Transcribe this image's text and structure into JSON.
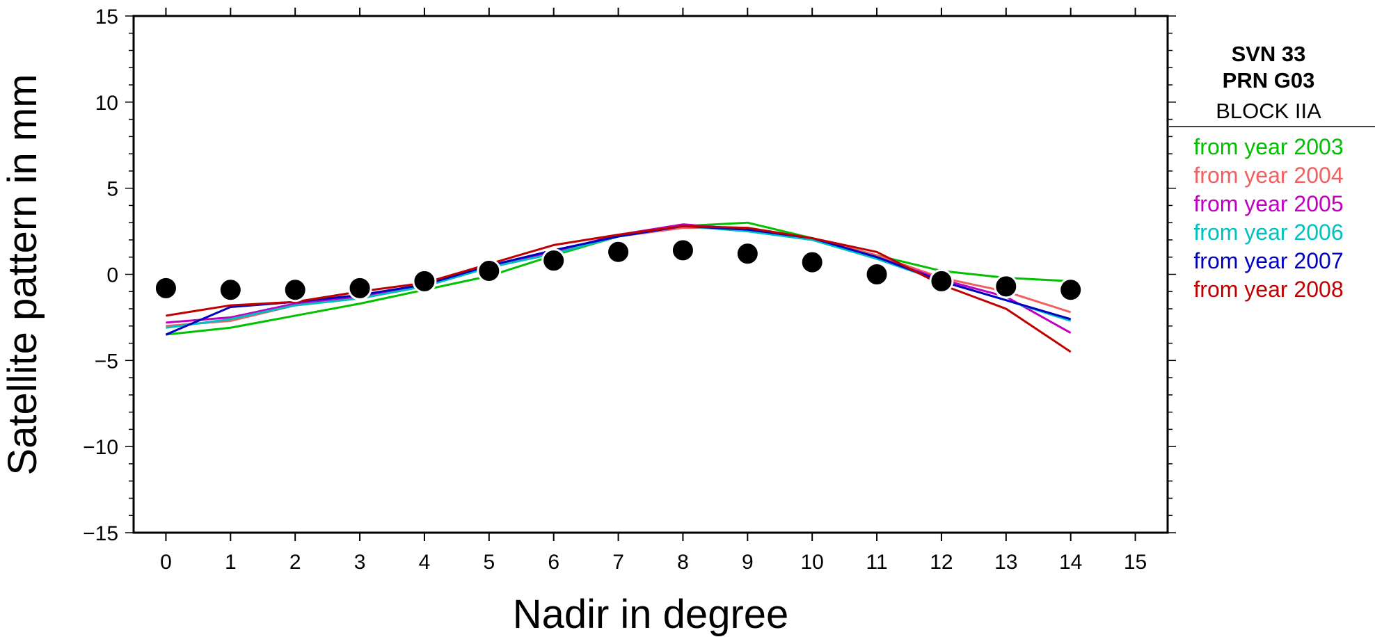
{
  "chart_data": {
    "type": "line",
    "xlabel": "Nadir in degree",
    "ylabel": "Satellite pattern in mm",
    "xlim": [
      -0.5,
      15.5
    ],
    "ylim": [
      -15,
      15
    ],
    "xticks": [
      0,
      1,
      2,
      3,
      4,
      5,
      6,
      7,
      8,
      9,
      10,
      11,
      12,
      13,
      14,
      15
    ],
    "yticks": [
      -15,
      -10,
      -5,
      0,
      5,
      10,
      15
    ],
    "ytick_labels": [
      "−15",
      "−10",
      "−5",
      "0",
      "5",
      "10",
      "15"
    ],
    "grid": false,
    "legend_placement": "right",
    "legend_title": {
      "svn": "SVN 33",
      "prn": "PRN G03",
      "block": "BLOCK IIA"
    },
    "series": [
      {
        "name": "from year 2003",
        "color": "#00c000",
        "x": [
          0,
          1,
          2,
          3,
          4,
          5,
          6,
          7,
          8,
          9,
          10,
          11,
          12,
          13,
          14
        ],
        "y": [
          -3.5,
          -3.1,
          -2.4,
          -1.7,
          -0.9,
          -0.1,
          1.1,
          2.2,
          2.8,
          3.0,
          2.1,
          1.1,
          0.2,
          -0.2,
          -0.4
        ]
      },
      {
        "name": "from year 2004",
        "color": "#f06060",
        "x": [
          0,
          1,
          2,
          3,
          4,
          5,
          6,
          7,
          8,
          9,
          10,
          11,
          12,
          13,
          14
        ],
        "y": [
          -3.0,
          -2.7,
          -1.8,
          -1.4,
          -0.7,
          0.4,
          1.2,
          2.2,
          2.7,
          2.7,
          2.1,
          1.1,
          -0.2,
          -1.0,
          -2.2
        ]
      },
      {
        "name": "from year 2005",
        "color": "#c000c0",
        "x": [
          0,
          1,
          2,
          3,
          4,
          5,
          6,
          7,
          8,
          9,
          10,
          11,
          12,
          13,
          14
        ],
        "y": [
          -2.8,
          -2.5,
          -1.7,
          -1.3,
          -0.6,
          0.5,
          1.3,
          2.3,
          2.9,
          2.6,
          2.0,
          1.0,
          -0.3,
          -1.3,
          -3.4
        ]
      },
      {
        "name": "from year 2006",
        "color": "#00c0c0",
        "x": [
          0,
          1,
          2,
          3,
          4,
          5,
          6,
          7,
          8,
          9,
          10,
          11,
          12,
          13,
          14
        ],
        "y": [
          -3.1,
          -2.6,
          -1.8,
          -1.4,
          -0.7,
          0.4,
          1.2,
          2.2,
          2.8,
          2.5,
          2.0,
          0.9,
          -0.4,
          -1.5,
          -2.7
        ]
      },
      {
        "name": "from year 2007",
        "color": "#0000c0",
        "x": [
          0,
          1,
          2,
          3,
          4,
          5,
          6,
          7,
          8,
          9,
          10,
          11,
          12,
          13,
          14
        ],
        "y": [
          -3.5,
          -1.9,
          -1.6,
          -1.2,
          -0.6,
          0.5,
          1.4,
          2.2,
          2.8,
          2.6,
          2.1,
          1.0,
          -0.4,
          -1.5,
          -2.6
        ]
      },
      {
        "name": "from year 2008",
        "color": "#c00000",
        "x": [
          0,
          1,
          2,
          3,
          4,
          5,
          6,
          7,
          8,
          9,
          10,
          11,
          12,
          13,
          14
        ],
        "y": [
          -2.4,
          -1.8,
          -1.6,
          -1.0,
          -0.5,
          0.6,
          1.7,
          2.3,
          2.8,
          2.7,
          2.1,
          1.3,
          -0.6,
          -2.0,
          -4.5
        ]
      },
      {
        "name": "",
        "color": "#000000",
        "marker": "circle",
        "x": [
          0,
          1,
          2,
          3,
          4,
          5,
          6,
          7,
          8,
          9,
          10,
          11,
          12,
          13,
          14
        ],
        "y": [
          -0.8,
          -0.9,
          -0.9,
          -0.8,
          -0.4,
          0.2,
          0.8,
          1.3,
          1.4,
          1.2,
          0.7,
          0.0,
          -0.4,
          -0.7,
          -0.9
        ]
      }
    ]
  }
}
